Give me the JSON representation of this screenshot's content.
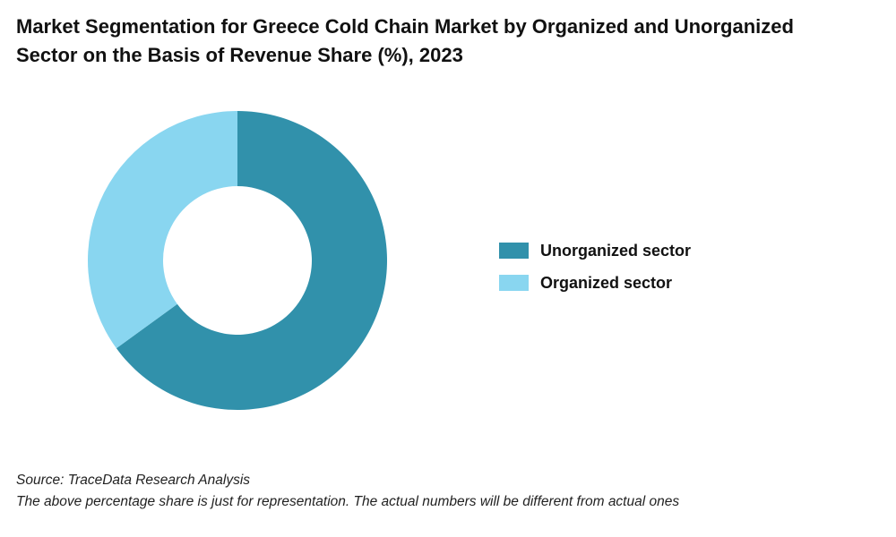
{
  "chart_data": {
    "type": "pie",
    "variant": "donut",
    "title": "Market Segmentation for Greece Cold Chain Market by Organized and Unorganized Sector on the Basis of Revenue Share (%), 2023",
    "categories": [
      "Unorganized sector",
      "Organized sector"
    ],
    "values": [
      65,
      35
    ],
    "colors": [
      "#3191AB",
      "#89D6F0"
    ],
    "legend_position": "right",
    "start_angle": "top, clockwise"
  },
  "footer": {
    "source": "Source: TraceData Research Analysis",
    "note": "The above percentage share is just for representation. The actual numbers will be different from actual ones"
  }
}
